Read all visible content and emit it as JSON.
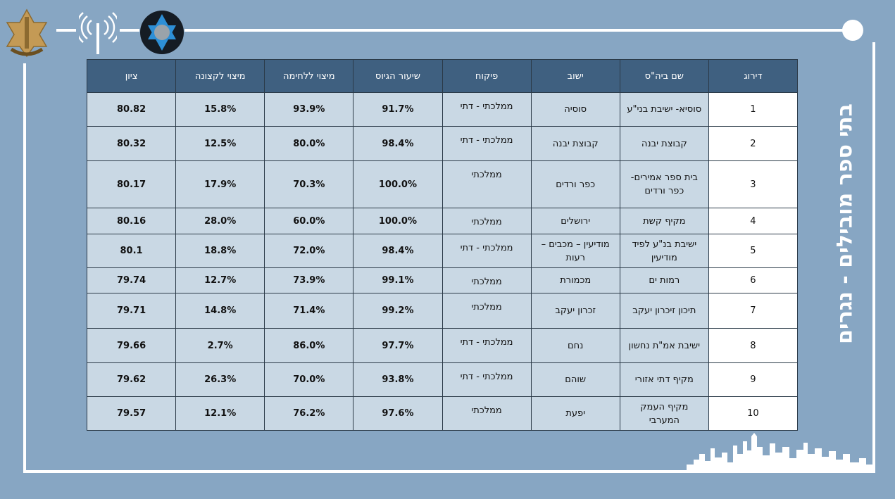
{
  "title": "בתי ספר מובילים - נגרים",
  "logos": [
    "idf-emblem-icon",
    "radio-antenna-icon",
    "star-of-david-emblem-icon"
  ],
  "colors": {
    "background": "#87a6c3",
    "header": "#3f6080",
    "cell": "#c9d8e4"
  },
  "table": {
    "headers": [
      "דירוג",
      "שם ביה\"ס",
      "ישוב",
      "פיקוח",
      "שיעור הגיוס",
      "מיצוי ללחימה",
      "מיצוי לקצונה",
      "ציון"
    ],
    "rows": [
      {
        "rank": "1",
        "name": "סוסיא- ישיבת בני\"ע",
        "city": "סוסיה",
        "supervision": "ממלכתי - דתי",
        "enlistment": "91.7%",
        "combat": "93.9%",
        "officers": "15.8%",
        "score": "80.82"
      },
      {
        "rank": "2",
        "name": "קבוצת יבנה",
        "city": "קבוצת יבנה",
        "supervision": "ממלכתי - דתי",
        "enlistment": "98.4%",
        "combat": "80.0%",
        "officers": "12.5%",
        "score": "80.32"
      },
      {
        "rank": "3",
        "name": "בית ספר אמירים- כפר ורדים",
        "city": "כפר ורדים",
        "supervision": "ממלכתי",
        "enlistment": "100.0%",
        "combat": "70.3%",
        "officers": "17.9%",
        "score": "80.17"
      },
      {
        "rank": "4",
        "name": "מקיף קשת",
        "city": "ירושלים",
        "supervision": "ממלכתי",
        "enlistment": "100.0%",
        "combat": "60.0%",
        "officers": "28.0%",
        "score": "80.16"
      },
      {
        "rank": "5",
        "name": "ישיבת בנ\"ע לפיד מודיעין",
        "city": "מודיעין – מכבים – רעות",
        "supervision": "ממלכתי - דתי",
        "enlistment": "98.4%",
        "combat": "72.0%",
        "officers": "18.8%",
        "score": "80.1"
      },
      {
        "rank": "6",
        "name": "רמות ים",
        "city": "מכמורת",
        "supervision": "ממלכתי",
        "enlistment": "99.1%",
        "combat": "73.9%",
        "officers": "12.7%",
        "score": "79.74"
      },
      {
        "rank": "7",
        "name": "תיכון זיכרון יעקב",
        "city": "זכרון יעקב",
        "supervision": "ממלכתי",
        "enlistment": "99.2%",
        "combat": "71.4%",
        "officers": "14.8%",
        "score": "79.71"
      },
      {
        "rank": "8",
        "name": "ישיבת אמ\"ת נחשון",
        "city": "נחם",
        "supervision": "ממלכתי - דתי",
        "enlistment": "97.7%",
        "combat": "86.0%",
        "officers": "2.7%",
        "score": "79.66"
      },
      {
        "rank": "9",
        "name": "מקיף דתי אזורי",
        "city": "שוהם",
        "supervision": "ממלכתי - דתי",
        "enlistment": "93.8%",
        "combat": "70.0%",
        "officers": "26.3%",
        "score": "79.62"
      },
      {
        "rank": "10",
        "name": "מקיף העמק המערבי",
        "city": "יפעת",
        "supervision": "ממלכתי",
        "enlistment": "97.6%",
        "combat": "76.2%",
        "officers": "12.1%",
        "score": "79.57"
      }
    ]
  }
}
